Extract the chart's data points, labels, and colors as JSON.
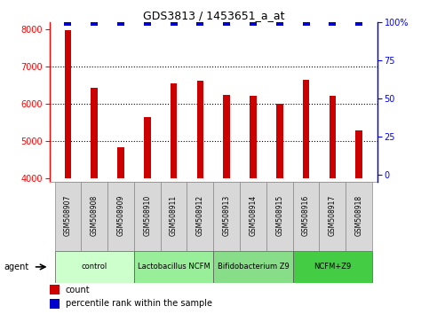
{
  "title": "GDS3813 / 1453651_a_at",
  "samples": [
    "GSM508907",
    "GSM508908",
    "GSM508909",
    "GSM508910",
    "GSM508911",
    "GSM508912",
    "GSM508913",
    "GSM508914",
    "GSM508915",
    "GSM508916",
    "GSM508917",
    "GSM508918"
  ],
  "counts": [
    7980,
    6430,
    4830,
    5650,
    6540,
    6620,
    6240,
    6210,
    6000,
    6640,
    6210,
    5290
  ],
  "percentile_ranks": [
    100,
    100,
    100,
    100,
    100,
    100,
    100,
    100,
    100,
    100,
    100,
    100
  ],
  "ylim_left": [
    3900,
    8200
  ],
  "ylim_right": [
    -4.76,
    100
  ],
  "yticks_left": [
    4000,
    5000,
    6000,
    7000,
    8000
  ],
  "yticks_right": [
    0,
    25,
    50,
    75,
    100
  ],
  "grid_ticks": [
    5000,
    6000,
    7000
  ],
  "bar_color": "#cc0000",
  "dot_color": "#0000cc",
  "groups": [
    {
      "label": "control",
      "start": 0,
      "end": 3,
      "color": "#ccffcc"
    },
    {
      "label": "Lactobacillus NCFM",
      "start": 3,
      "end": 6,
      "color": "#99ee99"
    },
    {
      "label": "Bifidobacterium Z9",
      "start": 6,
      "end": 9,
      "color": "#88dd88"
    },
    {
      "label": "NCFM+Z9",
      "start": 9,
      "end": 12,
      "color": "#44cc44"
    }
  ],
  "agent_label": "agent",
  "legend_count_label": "count",
  "legend_pct_label": "percentile rank within the sample",
  "bar_width": 0.25,
  "dot_marker_size": 36,
  "fig_width": 4.83,
  "fig_height": 3.54,
  "dpi": 100
}
